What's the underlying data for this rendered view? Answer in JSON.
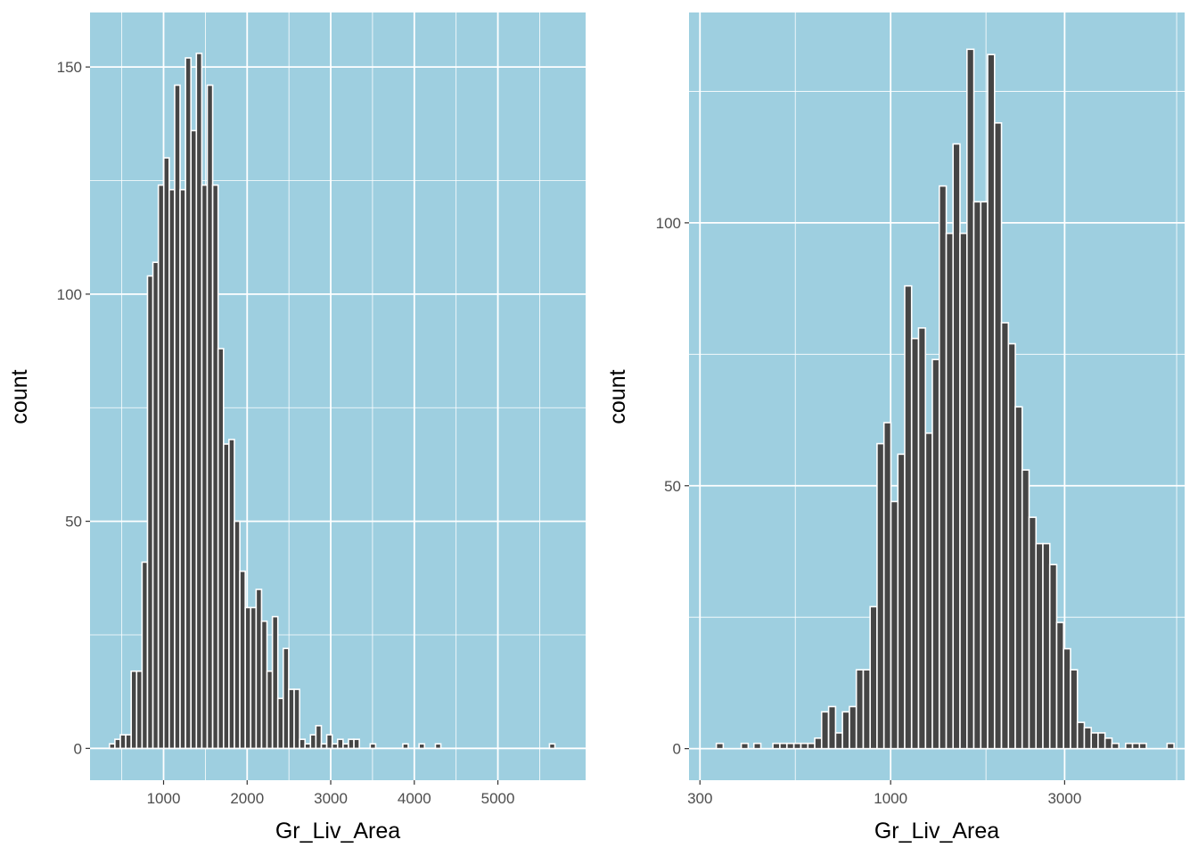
{
  "colors": {
    "panel_background": "#9ecfe0",
    "grid": "#ffffff",
    "bar_fill": "#454545",
    "bar_outline": "#ffffff",
    "tick_text": "#4d4d4d",
    "axis_title": "#000000"
  },
  "chart_data": [
    {
      "type": "bar",
      "title": "",
      "xlabel": "Gr_Liv_Area",
      "ylabel": "count",
      "x_scale": "linear",
      "grid": true,
      "legend": "none",
      "xlim": [
        120,
        6050
      ],
      "ylim": [
        -7,
        162
      ],
      "x_ticks": [
        1000,
        2000,
        3000,
        4000,
        5000
      ],
      "x_tick_labels": [
        "1000",
        "2000",
        "3000",
        "4000",
        "5000"
      ],
      "y_ticks": [
        0,
        50,
        100,
        150
      ],
      "y_tick_labels": [
        "0",
        "50",
        "100",
        "150"
      ],
      "bin_width": 65,
      "bins": [
        {
          "x": 385,
          "count": 1
        },
        {
          "x": 450,
          "count": 2
        },
        {
          "x": 515,
          "count": 3
        },
        {
          "x": 580,
          "count": 3
        },
        {
          "x": 645,
          "count": 17
        },
        {
          "x": 710,
          "count": 17
        },
        {
          "x": 775,
          "count": 41
        },
        {
          "x": 840,
          "count": 104
        },
        {
          "x": 905,
          "count": 107
        },
        {
          "x": 970,
          "count": 124
        },
        {
          "x": 1035,
          "count": 130
        },
        {
          "x": 1100,
          "count": 123
        },
        {
          "x": 1165,
          "count": 146
        },
        {
          "x": 1230,
          "count": 123
        },
        {
          "x": 1295,
          "count": 152
        },
        {
          "x": 1360,
          "count": 136
        },
        {
          "x": 1425,
          "count": 153
        },
        {
          "x": 1490,
          "count": 124
        },
        {
          "x": 1555,
          "count": 146
        },
        {
          "x": 1620,
          "count": 124
        },
        {
          "x": 1685,
          "count": 88
        },
        {
          "x": 1750,
          "count": 67
        },
        {
          "x": 1815,
          "count": 68
        },
        {
          "x": 1880,
          "count": 50
        },
        {
          "x": 1945,
          "count": 39
        },
        {
          "x": 2010,
          "count": 31
        },
        {
          "x": 2075,
          "count": 31
        },
        {
          "x": 2140,
          "count": 35
        },
        {
          "x": 2205,
          "count": 28
        },
        {
          "x": 2270,
          "count": 17
        },
        {
          "x": 2335,
          "count": 29
        },
        {
          "x": 2400,
          "count": 11
        },
        {
          "x": 2465,
          "count": 22
        },
        {
          "x": 2530,
          "count": 13
        },
        {
          "x": 2595,
          "count": 13
        },
        {
          "x": 2660,
          "count": 2
        },
        {
          "x": 2725,
          "count": 1
        },
        {
          "x": 2790,
          "count": 3
        },
        {
          "x": 2855,
          "count": 5
        },
        {
          "x": 2920,
          "count": 1
        },
        {
          "x": 2985,
          "count": 3
        },
        {
          "x": 3050,
          "count": 1
        },
        {
          "x": 3115,
          "count": 2
        },
        {
          "x": 3180,
          "count": 1
        },
        {
          "x": 3245,
          "count": 2
        },
        {
          "x": 3310,
          "count": 2
        },
        {
          "x": 3505,
          "count": 1
        },
        {
          "x": 3895,
          "count": 1
        },
        {
          "x": 4090,
          "count": 1
        },
        {
          "x": 4285,
          "count": 1
        },
        {
          "x": 5650,
          "count": 1
        }
      ]
    },
    {
      "type": "bar",
      "title": "",
      "xlabel": "Gr_Liv_Area",
      "ylabel": "count",
      "x_scale": "log10",
      "grid": true,
      "legend": "none",
      "xlim": [
        280,
        6400
      ],
      "ylim": [
        -6,
        140
      ],
      "x_ticks": [
        300,
        1000,
        3000
      ],
      "x_tick_labels": [
        "300",
        "1000",
        "3000"
      ],
      "y_ticks": [
        0,
        50,
        100
      ],
      "y_tick_labels": [
        "0",
        "50",
        "100"
      ],
      "bin_width_log10": 0.019,
      "bins": [
        {
          "x": 340,
          "count": 1
        },
        {
          "x": 398,
          "count": 1
        },
        {
          "x": 431,
          "count": 1
        },
        {
          "x": 486,
          "count": 1
        },
        {
          "x": 508,
          "count": 1
        },
        {
          "x": 531,
          "count": 1
        },
        {
          "x": 555,
          "count": 1
        },
        {
          "x": 580,
          "count": 1
        },
        {
          "x": 606,
          "count": 1
        },
        {
          "x": 633,
          "count": 2
        },
        {
          "x": 661,
          "count": 7
        },
        {
          "x": 691,
          "count": 8
        },
        {
          "x": 722,
          "count": 3
        },
        {
          "x": 754,
          "count": 7
        },
        {
          "x": 788,
          "count": 8
        },
        {
          "x": 823,
          "count": 15
        },
        {
          "x": 860,
          "count": 15
        },
        {
          "x": 898,
          "count": 27
        },
        {
          "x": 938,
          "count": 58
        },
        {
          "x": 980,
          "count": 62
        },
        {
          "x": 1024,
          "count": 47
        },
        {
          "x": 1070,
          "count": 56
        },
        {
          "x": 1117,
          "count": 88
        },
        {
          "x": 1167,
          "count": 78
        },
        {
          "x": 1219,
          "count": 80
        },
        {
          "x": 1274,
          "count": 60
        },
        {
          "x": 1330,
          "count": 74
        },
        {
          "x": 1390,
          "count": 107
        },
        {
          "x": 1452,
          "count": 98
        },
        {
          "x": 1516,
          "count": 115
        },
        {
          "x": 1584,
          "count": 98
        },
        {
          "x": 1655,
          "count": 133
        },
        {
          "x": 1728,
          "count": 104
        },
        {
          "x": 1806,
          "count": 104
        },
        {
          "x": 1886,
          "count": 132
        },
        {
          "x": 1970,
          "count": 119
        },
        {
          "x": 2058,
          "count": 81
        },
        {
          "x": 2150,
          "count": 77
        },
        {
          "x": 2245,
          "count": 65
        },
        {
          "x": 2345,
          "count": 53
        },
        {
          "x": 2450,
          "count": 44
        },
        {
          "x": 2559,
          "count": 39
        },
        {
          "x": 2673,
          "count": 39
        },
        {
          "x": 2792,
          "count": 35
        },
        {
          "x": 2916,
          "count": 24
        },
        {
          "x": 3046,
          "count": 19
        },
        {
          "x": 3182,
          "count": 15
        },
        {
          "x": 3324,
          "count": 5
        },
        {
          "x": 3472,
          "count": 4
        },
        {
          "x": 3627,
          "count": 3
        },
        {
          "x": 3788,
          "count": 3
        },
        {
          "x": 3957,
          "count": 2
        },
        {
          "x": 4133,
          "count": 1
        },
        {
          "x": 4507,
          "count": 1
        },
        {
          "x": 4707,
          "count": 1
        },
        {
          "x": 4917,
          "count": 1
        },
        {
          "x": 5856,
          "count": 1
        }
      ]
    }
  ]
}
